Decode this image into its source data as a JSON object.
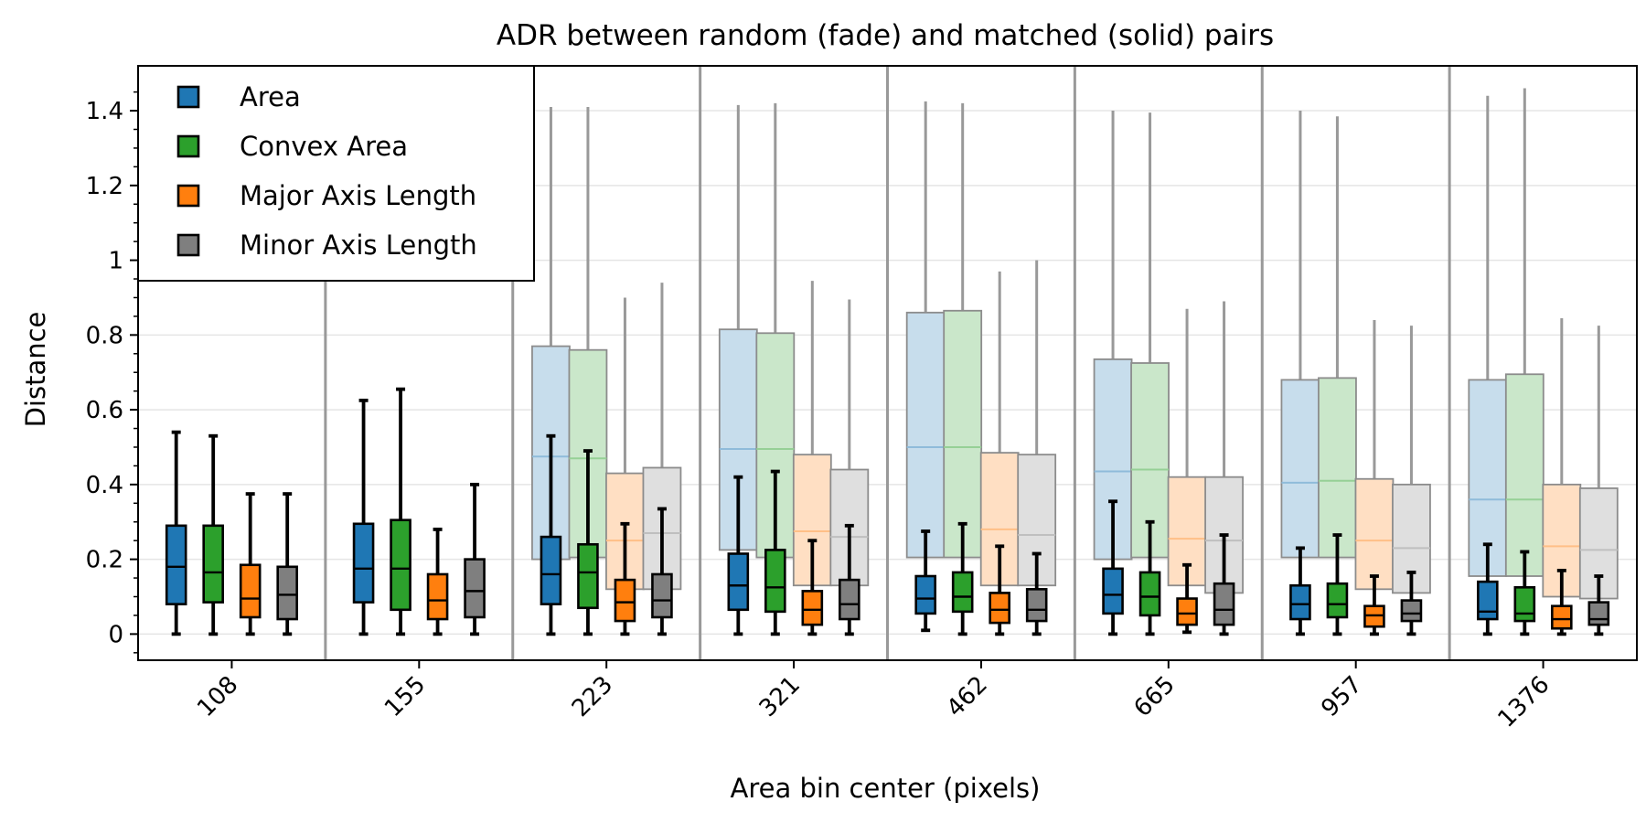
{
  "chart_data": {
    "type": "boxplot",
    "title": "ADR between random (fade) and matched (solid) pairs",
    "xlabel": "Area bin center (pixels)",
    "ylabel": "Distance",
    "ylim": [
      -0.07,
      1.52
    ],
    "yticks": [
      0,
      0.2,
      0.4,
      0.6,
      0.8,
      1,
      1.2,
      1.4
    ],
    "ytick_labels": [
      "0",
      "0.2",
      "0.4",
      "0.6",
      "0.8",
      "1",
      "1.2",
      "1.4"
    ],
    "grid": true,
    "legend_position": "top-left",
    "categories": [
      "108",
      "155",
      "223",
      "321",
      "462",
      "665",
      "957",
      "1376"
    ],
    "series": [
      {
        "name": "Area",
        "color": "#1f77b4",
        "matched": [
          {
            "min": 0,
            "q1": 0.08,
            "median": 0.18,
            "q3": 0.29,
            "max": 0.54
          },
          {
            "min": 0,
            "q1": 0.085,
            "median": 0.175,
            "q3": 0.295,
            "max": 0.625
          },
          {
            "min": 0,
            "q1": 0.08,
            "median": 0.16,
            "q3": 0.26,
            "max": 0.53
          },
          {
            "min": 0,
            "q1": 0.065,
            "median": 0.13,
            "q3": 0.215,
            "max": 0.42
          },
          {
            "min": 0.01,
            "q1": 0.055,
            "median": 0.095,
            "q3": 0.155,
            "max": 0.275
          },
          {
            "min": 0,
            "q1": 0.055,
            "median": 0.105,
            "q3": 0.175,
            "max": 0.355
          },
          {
            "min": 0,
            "q1": 0.04,
            "median": 0.08,
            "q3": 0.13,
            "max": 0.23
          },
          {
            "min": 0,
            "q1": 0.04,
            "median": 0.06,
            "q3": 0.14,
            "max": 0.24
          }
        ],
        "random": [
          null,
          null,
          {
            "min": 0.2,
            "q1": 0.2,
            "median": 0.475,
            "q3": 0.77,
            "max": 1.41
          },
          {
            "min": 0.22,
            "q1": 0.225,
            "median": 0.495,
            "q3": 0.815,
            "max": 1.415
          },
          {
            "min": 0.2,
            "q1": 0.205,
            "median": 0.5,
            "q3": 0.86,
            "max": 1.425
          },
          {
            "min": 0.2,
            "q1": 0.2,
            "median": 0.435,
            "q3": 0.735,
            "max": 1.4
          },
          {
            "min": 0.2,
            "q1": 0.205,
            "median": 0.405,
            "q3": 0.68,
            "max": 1.4
          },
          {
            "min": 0.15,
            "q1": 0.155,
            "median": 0.36,
            "q3": 0.68,
            "max": 1.44
          }
        ]
      },
      {
        "name": "Convex Area",
        "color": "#2ca02c",
        "matched": [
          {
            "min": 0,
            "q1": 0.085,
            "median": 0.165,
            "q3": 0.29,
            "max": 0.53
          },
          {
            "min": 0,
            "q1": 0.065,
            "median": 0.175,
            "q3": 0.305,
            "max": 0.655
          },
          {
            "min": 0,
            "q1": 0.07,
            "median": 0.165,
            "q3": 0.24,
            "max": 0.49
          },
          {
            "min": 0,
            "q1": 0.06,
            "median": 0.125,
            "q3": 0.225,
            "max": 0.435
          },
          {
            "min": 0,
            "q1": 0.06,
            "median": 0.1,
            "q3": 0.165,
            "max": 0.295
          },
          {
            "min": 0,
            "q1": 0.05,
            "median": 0.1,
            "q3": 0.165,
            "max": 0.3
          },
          {
            "min": 0,
            "q1": 0.045,
            "median": 0.08,
            "q3": 0.135,
            "max": 0.265
          },
          {
            "min": 0,
            "q1": 0.035,
            "median": 0.055,
            "q3": 0.125,
            "max": 0.22
          }
        ],
        "random": [
          null,
          null,
          {
            "min": 0.2,
            "q1": 0.205,
            "median": 0.47,
            "q3": 0.76,
            "max": 1.41
          },
          {
            "min": 0.2,
            "q1": 0.205,
            "median": 0.495,
            "q3": 0.805,
            "max": 1.42
          },
          {
            "min": 0.2,
            "q1": 0.205,
            "median": 0.5,
            "q3": 0.865,
            "max": 1.42
          },
          {
            "min": 0.2,
            "q1": 0.205,
            "median": 0.44,
            "q3": 0.725,
            "max": 1.395
          },
          {
            "min": 0.2,
            "q1": 0.205,
            "median": 0.41,
            "q3": 0.685,
            "max": 1.385
          },
          {
            "min": 0.15,
            "q1": 0.155,
            "median": 0.36,
            "q3": 0.695,
            "max": 1.46
          }
        ]
      },
      {
        "name": "Major Axis Length",
        "color": "#ff7f0e",
        "matched": [
          {
            "min": 0,
            "q1": 0.045,
            "median": 0.095,
            "q3": 0.185,
            "max": 0.375
          },
          {
            "min": 0,
            "q1": 0.04,
            "median": 0.09,
            "q3": 0.16,
            "max": 0.28
          },
          {
            "min": 0,
            "q1": 0.035,
            "median": 0.085,
            "q3": 0.145,
            "max": 0.295
          },
          {
            "min": 0,
            "q1": 0.025,
            "median": 0.065,
            "q3": 0.115,
            "max": 0.25
          },
          {
            "min": 0,
            "q1": 0.03,
            "median": 0.065,
            "q3": 0.11,
            "max": 0.235
          },
          {
            "min": 0.005,
            "q1": 0.025,
            "median": 0.055,
            "q3": 0.095,
            "max": 0.185
          },
          {
            "min": 0,
            "q1": 0.02,
            "median": 0.05,
            "q3": 0.075,
            "max": 0.155
          },
          {
            "min": 0,
            "q1": 0.015,
            "median": 0.04,
            "q3": 0.075,
            "max": 0.17
          }
        ],
        "random": [
          null,
          null,
          {
            "min": 0.12,
            "q1": 0.12,
            "median": 0.25,
            "q3": 0.43,
            "max": 0.9
          },
          {
            "min": 0.13,
            "q1": 0.13,
            "median": 0.275,
            "q3": 0.48,
            "max": 0.945
          },
          {
            "min": 0.13,
            "q1": 0.13,
            "median": 0.28,
            "q3": 0.485,
            "max": 0.97
          },
          {
            "min": 0.13,
            "q1": 0.13,
            "median": 0.255,
            "q3": 0.42,
            "max": 0.87
          },
          {
            "min": 0.12,
            "q1": 0.12,
            "median": 0.25,
            "q3": 0.415,
            "max": 0.84
          },
          {
            "min": 0.1,
            "q1": 0.1,
            "median": 0.235,
            "q3": 0.4,
            "max": 0.845
          }
        ]
      },
      {
        "name": "Minor Axis Length",
        "color": "#7f7f7f",
        "matched": [
          {
            "min": 0,
            "q1": 0.04,
            "median": 0.105,
            "q3": 0.18,
            "max": 0.375
          },
          {
            "min": 0,
            "q1": 0.045,
            "median": 0.115,
            "q3": 0.2,
            "max": 0.4
          },
          {
            "min": 0,
            "q1": 0.045,
            "median": 0.09,
            "q3": 0.16,
            "max": 0.335
          },
          {
            "min": 0,
            "q1": 0.04,
            "median": 0.08,
            "q3": 0.145,
            "max": 0.29
          },
          {
            "min": 0,
            "q1": 0.035,
            "median": 0.065,
            "q3": 0.12,
            "max": 0.215
          },
          {
            "min": 0,
            "q1": 0.025,
            "median": 0.065,
            "q3": 0.135,
            "max": 0.265
          },
          {
            "min": 0,
            "q1": 0.035,
            "median": 0.055,
            "q3": 0.09,
            "max": 0.165
          },
          {
            "min": 0,
            "q1": 0.025,
            "median": 0.04,
            "q3": 0.085,
            "max": 0.155
          }
        ],
        "random": [
          null,
          null,
          {
            "min": 0.12,
            "q1": 0.12,
            "median": 0.27,
            "q3": 0.445,
            "max": 0.94
          },
          {
            "min": 0.13,
            "q1": 0.13,
            "median": 0.26,
            "q3": 0.44,
            "max": 0.895
          },
          {
            "min": 0.13,
            "q1": 0.13,
            "median": 0.265,
            "q3": 0.48,
            "max": 1.0
          },
          {
            "min": 0.11,
            "q1": 0.11,
            "median": 0.25,
            "q3": 0.42,
            "max": 0.89
          },
          {
            "min": 0.11,
            "q1": 0.11,
            "median": 0.23,
            "q3": 0.4,
            "max": 0.825
          },
          {
            "min": 0.095,
            "q1": 0.095,
            "median": 0.225,
            "q3": 0.39,
            "max": 0.825
          }
        ]
      }
    ]
  }
}
